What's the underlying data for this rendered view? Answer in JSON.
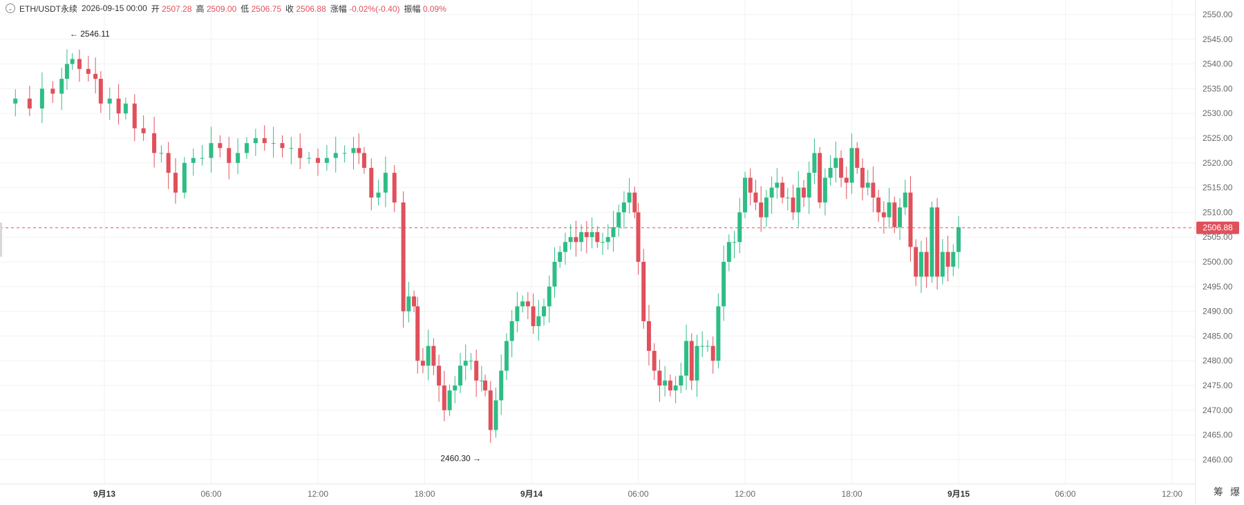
{
  "header": {
    "symbol": "ETH/USDT永续",
    "datetime": "2026-09-15 00:00",
    "open_label": "开",
    "open": "2507.28",
    "high_label": "高",
    "high": "2509.00",
    "low_label": "低",
    "low": "2506.75",
    "close_label": "收",
    "close": "2506.88",
    "change_label": "涨幅",
    "change": "-0.02%(-0.40)",
    "amplitude_label": "振幅",
    "amplitude": "0.09%"
  },
  "current_price": "2506.88",
  "side_tools": [
    "筹",
    "爆"
  ],
  "colors": {
    "up": "#2ebd85",
    "down": "#e0505b",
    "grid": "#f1f1f1",
    "axis_text": "#666666",
    "price_line": "#e0505b"
  },
  "chart_data": {
    "type": "candlestick",
    "title": "",
    "y_ticks": [
      "2550.00",
      "2545.00",
      "2540.00",
      "2535.00",
      "2530.00",
      "2525.00",
      "2520.00",
      "2515.00",
      "2510.00",
      "2505.00",
      "2500.00",
      "2495.00",
      "2490.00",
      "2485.00",
      "2480.00",
      "2475.00",
      "2470.00",
      "2465.00",
      "2460.00"
    ],
    "ylim": [
      2457,
      2553
    ],
    "time_labels": [
      {
        "label": "9月13",
        "bold": true,
        "hour": 0
      },
      {
        "label": "06:00",
        "bold": false,
        "hour": 6
      },
      {
        "label": "12:00",
        "bold": false,
        "hour": 12
      },
      {
        "label": "18:00",
        "bold": false,
        "hour": 18
      },
      {
        "label": "9月14",
        "bold": true,
        "hour": 24
      },
      {
        "label": "06:00",
        "bold": false,
        "hour": 30
      },
      {
        "label": "12:00",
        "bold": false,
        "hour": 36
      },
      {
        "label": "18:00",
        "bold": false,
        "hour": 42
      },
      {
        "label": "9月15",
        "bold": true,
        "hour": 48
      },
      {
        "label": "06:00",
        "bold": false,
        "hour": 54
      },
      {
        "label": "12:00",
        "bold": false,
        "hour": 60
      }
    ],
    "high_marker": {
      "value": "2546.11",
      "hour": -2.1
    },
    "low_marker": {
      "value": "2460.30",
      "hour": 21.4
    },
    "close_path": [
      [
        -5.9,
        2532
      ],
      [
        -5.0,
        2533
      ],
      [
        -4.2,
        2531
      ],
      [
        -3.5,
        2535
      ],
      [
        -2.9,
        2534
      ],
      [
        -2.4,
        2537
      ],
      [
        -2.1,
        2540
      ],
      [
        -1.8,
        2541
      ],
      [
        -1.4,
        2539
      ],
      [
        -0.9,
        2538
      ],
      [
        -0.5,
        2537
      ],
      [
        -0.2,
        2532
      ],
      [
        0.3,
        2533
      ],
      [
        0.8,
        2530
      ],
      [
        1.2,
        2532
      ],
      [
        1.7,
        2527
      ],
      [
        2.2,
        2526
      ],
      [
        2.8,
        2522
      ],
      [
        3.2,
        2522
      ],
      [
        3.6,
        2518
      ],
      [
        4.0,
        2514
      ],
      [
        4.5,
        2520
      ],
      [
        5.0,
        2521
      ],
      [
        5.5,
        2521
      ],
      [
        6.0,
        2524
      ],
      [
        6.5,
        2523
      ],
      [
        7.0,
        2520
      ],
      [
        7.5,
        2522
      ],
      [
        8.0,
        2524
      ],
      [
        8.5,
        2525
      ],
      [
        9.0,
        2524
      ],
      [
        9.5,
        2524
      ],
      [
        10.0,
        2523
      ],
      [
        10.5,
        2523
      ],
      [
        11.0,
        2521
      ],
      [
        11.5,
        2521
      ],
      [
        12.0,
        2520
      ],
      [
        12.5,
        2521
      ],
      [
        13.0,
        2522
      ],
      [
        13.5,
        2522
      ],
      [
        14.0,
        2523
      ],
      [
        14.3,
        2522
      ],
      [
        14.6,
        2519
      ],
      [
        15.0,
        2513
      ],
      [
        15.4,
        2514
      ],
      [
        15.8,
        2518
      ],
      [
        16.3,
        2512
      ],
      [
        16.8,
        2490
      ],
      [
        17.1,
        2493
      ],
      [
        17.4,
        2491
      ],
      [
        17.6,
        2480
      ],
      [
        17.9,
        2479
      ],
      [
        18.2,
        2483
      ],
      [
        18.5,
        2479
      ],
      [
        18.8,
        2475
      ],
      [
        19.1,
        2470
      ],
      [
        19.4,
        2474
      ],
      [
        19.7,
        2475
      ],
      [
        20.0,
        2479
      ],
      [
        20.3,
        2480
      ],
      [
        20.6,
        2480
      ],
      [
        20.9,
        2476
      ],
      [
        21.2,
        2476
      ],
      [
        21.4,
        2474
      ],
      [
        21.7,
        2466
      ],
      [
        22.0,
        2472
      ],
      [
        22.3,
        2478
      ],
      [
        22.6,
        2484
      ],
      [
        22.9,
        2488
      ],
      [
        23.2,
        2491
      ],
      [
        23.5,
        2492
      ],
      [
        23.8,
        2491
      ],
      [
        24.1,
        2487
      ],
      [
        24.4,
        2489
      ],
      [
        24.7,
        2491
      ],
      [
        25.0,
        2495
      ],
      [
        25.3,
        2500
      ],
      [
        25.6,
        2502
      ],
      [
        25.9,
        2504
      ],
      [
        26.2,
        2505
      ],
      [
        26.5,
        2504
      ],
      [
        26.8,
        2506
      ],
      [
        27.1,
        2505
      ],
      [
        27.4,
        2506
      ],
      [
        27.7,
        2504
      ],
      [
        28.0,
        2504
      ],
      [
        28.3,
        2505
      ],
      [
        28.6,
        2507
      ],
      [
        28.9,
        2510
      ],
      [
        29.2,
        2512
      ],
      [
        29.5,
        2514
      ],
      [
        29.8,
        2510
      ],
      [
        30.0,
        2500
      ],
      [
        30.3,
        2488
      ],
      [
        30.6,
        2482
      ],
      [
        30.9,
        2478
      ],
      [
        31.2,
        2475
      ],
      [
        31.5,
        2476
      ],
      [
        31.8,
        2474
      ],
      [
        32.1,
        2475
      ],
      [
        32.4,
        2477
      ],
      [
        32.7,
        2484
      ],
      [
        33.0,
        2476
      ],
      [
        33.3,
        2483
      ],
      [
        33.6,
        2483
      ],
      [
        33.9,
        2483
      ],
      [
        34.2,
        2480
      ],
      [
        34.5,
        2491
      ],
      [
        34.8,
        2500
      ],
      [
        35.1,
        2504
      ],
      [
        35.4,
        2504
      ],
      [
        35.7,
        2510
      ],
      [
        36.0,
        2517
      ],
      [
        36.3,
        2514
      ],
      [
        36.6,
        2512
      ],
      [
        36.9,
        2509
      ],
      [
        37.2,
        2513
      ],
      [
        37.5,
        2515
      ],
      [
        37.8,
        2516
      ],
      [
        38.1,
        2513
      ],
      [
        38.4,
        2513
      ],
      [
        38.7,
        2510
      ],
      [
        39.0,
        2515
      ],
      [
        39.3,
        2513
      ],
      [
        39.6,
        2518
      ],
      [
        39.9,
        2522
      ],
      [
        40.2,
        2512
      ],
      [
        40.5,
        2517
      ],
      [
        40.8,
        2519
      ],
      [
        41.1,
        2521
      ],
      [
        41.4,
        2517
      ],
      [
        41.7,
        2516
      ],
      [
        42.0,
        2523
      ],
      [
        42.3,
        2519
      ],
      [
        42.6,
        2515
      ],
      [
        42.9,
        2516
      ],
      [
        43.2,
        2513
      ],
      [
        43.5,
        2510
      ],
      [
        43.8,
        2509
      ],
      [
        44.1,
        2512
      ],
      [
        44.4,
        2507
      ],
      [
        44.7,
        2511
      ],
      [
        45.0,
        2514
      ],
      [
        45.3,
        2503
      ],
      [
        45.6,
        2497
      ],
      [
        45.9,
        2502
      ],
      [
        46.2,
        2497
      ],
      [
        46.5,
        2511
      ],
      [
        46.8,
        2497
      ],
      [
        47.1,
        2502
      ],
      [
        47.4,
        2499
      ],
      [
        47.7,
        2502
      ],
      [
        48.0,
        2507
      ]
    ]
  }
}
